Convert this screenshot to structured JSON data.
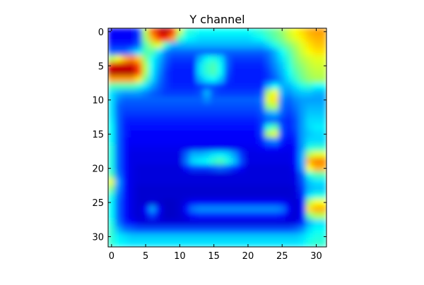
{
  "chart_data": {
    "type": "heatmap",
    "title": "Y channel",
    "xlabel": "",
    "ylabel": "",
    "grid": false,
    "colormap": "jet",
    "interpolation": "smooth",
    "shape": [
      32,
      32
    ],
    "xlim": [
      -0.5,
      31.5
    ],
    "ylim": [
      31.5,
      -0.5
    ],
    "x_ticks": [
      0,
      5,
      10,
      15,
      20,
      25,
      30
    ],
    "x_tick_labels": [
      "0",
      "5",
      "10",
      "15",
      "20",
      "25",
      "30"
    ],
    "y_ticks": [
      0,
      5,
      10,
      15,
      20,
      25,
      30
    ],
    "y_tick_labels": [
      "0",
      "5",
      "10",
      "15",
      "20",
      "25",
      "30"
    ],
    "values_range": [
      0,
      1
    ],
    "values": [
      [
        0.12,
        0.12,
        0.12,
        0.12,
        0.18,
        0.55,
        0.78,
        0.92,
        0.95,
        0.88,
        0.58,
        0.42,
        0.4,
        0.38,
        0.38,
        0.38,
        0.38,
        0.38,
        0.38,
        0.38,
        0.38,
        0.4,
        0.42,
        0.45,
        0.48,
        0.52,
        0.58,
        0.62,
        0.66,
        0.7,
        0.72,
        0.72
      ],
      [
        0.12,
        0.12,
        0.12,
        0.12,
        0.18,
        0.52,
        0.7,
        0.82,
        0.85,
        0.72,
        0.45,
        0.38,
        0.36,
        0.34,
        0.34,
        0.34,
        0.34,
        0.34,
        0.34,
        0.34,
        0.34,
        0.36,
        0.38,
        0.42,
        0.46,
        0.5,
        0.56,
        0.6,
        0.64,
        0.68,
        0.7,
        0.7
      ],
      [
        0.15,
        0.15,
        0.15,
        0.15,
        0.22,
        0.45,
        0.55,
        0.6,
        0.42,
        0.3,
        0.3,
        0.3,
        0.3,
        0.3,
        0.3,
        0.3,
        0.3,
        0.3,
        0.3,
        0.3,
        0.3,
        0.3,
        0.3,
        0.34,
        0.4,
        0.45,
        0.5,
        0.55,
        0.6,
        0.65,
        0.68,
        0.68
      ],
      [
        0.22,
        0.22,
        0.22,
        0.28,
        0.35,
        0.45,
        0.45,
        0.35,
        0.25,
        0.22,
        0.22,
        0.22,
        0.22,
        0.22,
        0.22,
        0.22,
        0.22,
        0.22,
        0.22,
        0.22,
        0.22,
        0.22,
        0.22,
        0.24,
        0.3,
        0.38,
        0.45,
        0.52,
        0.58,
        0.62,
        0.65,
        0.65
      ],
      [
        0.55,
        0.62,
        0.7,
        0.75,
        0.68,
        0.5,
        0.38,
        0.3,
        0.22,
        0.18,
        0.18,
        0.18,
        0.18,
        0.3,
        0.38,
        0.4,
        0.35,
        0.22,
        0.18,
        0.18,
        0.18,
        0.18,
        0.18,
        0.22,
        0.28,
        0.35,
        0.42,
        0.5,
        0.55,
        0.58,
        0.6,
        0.6
      ],
      [
        0.9,
        0.92,
        0.92,
        0.92,
        0.8,
        0.55,
        0.38,
        0.28,
        0.2,
        0.16,
        0.16,
        0.16,
        0.16,
        0.35,
        0.42,
        0.45,
        0.38,
        0.22,
        0.16,
        0.16,
        0.16,
        0.16,
        0.16,
        0.2,
        0.26,
        0.32,
        0.4,
        0.48,
        0.52,
        0.56,
        0.58,
        0.58
      ],
      [
        0.95,
        0.95,
        0.95,
        0.95,
        0.82,
        0.55,
        0.36,
        0.26,
        0.18,
        0.15,
        0.15,
        0.15,
        0.15,
        0.35,
        0.42,
        0.45,
        0.38,
        0.2,
        0.15,
        0.15,
        0.15,
        0.15,
        0.15,
        0.18,
        0.24,
        0.3,
        0.38,
        0.45,
        0.5,
        0.54,
        0.56,
        0.56
      ],
      [
        0.72,
        0.72,
        0.72,
        0.72,
        0.65,
        0.48,
        0.34,
        0.24,
        0.18,
        0.15,
        0.15,
        0.15,
        0.15,
        0.3,
        0.36,
        0.38,
        0.32,
        0.18,
        0.15,
        0.15,
        0.15,
        0.15,
        0.15,
        0.18,
        0.22,
        0.28,
        0.35,
        0.42,
        0.48,
        0.52,
        0.54,
        0.54
      ],
      [
        0.45,
        0.45,
        0.45,
        0.45,
        0.42,
        0.35,
        0.28,
        0.22,
        0.18,
        0.16,
        0.16,
        0.16,
        0.16,
        0.18,
        0.2,
        0.2,
        0.18,
        0.16,
        0.16,
        0.16,
        0.16,
        0.16,
        0.16,
        0.3,
        0.38,
        0.3,
        0.3,
        0.35,
        0.4,
        0.42,
        0.38,
        0.38
      ],
      [
        0.35,
        0.3,
        0.28,
        0.28,
        0.28,
        0.25,
        0.22,
        0.2,
        0.18,
        0.18,
        0.18,
        0.18,
        0.18,
        0.2,
        0.3,
        0.2,
        0.18,
        0.18,
        0.18,
        0.18,
        0.18,
        0.18,
        0.2,
        0.55,
        0.62,
        0.3,
        0.26,
        0.3,
        0.32,
        0.32,
        0.3,
        0.3
      ],
      [
        0.35,
        0.25,
        0.22,
        0.22,
        0.22,
        0.22,
        0.22,
        0.22,
        0.22,
        0.22,
        0.22,
        0.22,
        0.22,
        0.22,
        0.26,
        0.22,
        0.22,
        0.22,
        0.22,
        0.22,
        0.22,
        0.22,
        0.24,
        0.6,
        0.65,
        0.26,
        0.22,
        0.26,
        0.28,
        0.28,
        0.28,
        0.28
      ],
      [
        0.35,
        0.22,
        0.2,
        0.2,
        0.2,
        0.2,
        0.2,
        0.2,
        0.2,
        0.2,
        0.2,
        0.2,
        0.2,
        0.2,
        0.2,
        0.2,
        0.2,
        0.2,
        0.2,
        0.2,
        0.2,
        0.2,
        0.22,
        0.52,
        0.55,
        0.24,
        0.2,
        0.24,
        0.28,
        0.3,
        0.3,
        0.3
      ],
      [
        0.35,
        0.22,
        0.18,
        0.18,
        0.18,
        0.18,
        0.18,
        0.18,
        0.18,
        0.18,
        0.18,
        0.18,
        0.18,
        0.18,
        0.18,
        0.18,
        0.18,
        0.18,
        0.18,
        0.18,
        0.18,
        0.18,
        0.2,
        0.28,
        0.3,
        0.22,
        0.18,
        0.22,
        0.28,
        0.32,
        0.32,
        0.32
      ],
      [
        0.36,
        0.22,
        0.16,
        0.15,
        0.15,
        0.15,
        0.15,
        0.15,
        0.15,
        0.15,
        0.15,
        0.15,
        0.15,
        0.15,
        0.15,
        0.15,
        0.15,
        0.15,
        0.15,
        0.15,
        0.15,
        0.15,
        0.18,
        0.22,
        0.22,
        0.18,
        0.16,
        0.2,
        0.28,
        0.34,
        0.34,
        0.34
      ],
      [
        0.38,
        0.22,
        0.15,
        0.14,
        0.14,
        0.14,
        0.14,
        0.14,
        0.14,
        0.14,
        0.14,
        0.14,
        0.14,
        0.14,
        0.14,
        0.14,
        0.14,
        0.14,
        0.14,
        0.14,
        0.14,
        0.14,
        0.18,
        0.4,
        0.45,
        0.2,
        0.15,
        0.2,
        0.28,
        0.34,
        0.36,
        0.36
      ],
      [
        0.38,
        0.22,
        0.15,
        0.12,
        0.12,
        0.12,
        0.12,
        0.12,
        0.12,
        0.12,
        0.12,
        0.12,
        0.12,
        0.12,
        0.12,
        0.12,
        0.12,
        0.12,
        0.12,
        0.12,
        0.12,
        0.12,
        0.18,
        0.55,
        0.6,
        0.2,
        0.14,
        0.18,
        0.28,
        0.32,
        0.34,
        0.34
      ],
      [
        0.38,
        0.22,
        0.14,
        0.12,
        0.12,
        0.12,
        0.12,
        0.12,
        0.12,
        0.12,
        0.12,
        0.12,
        0.12,
        0.12,
        0.12,
        0.12,
        0.12,
        0.12,
        0.12,
        0.12,
        0.12,
        0.12,
        0.15,
        0.24,
        0.26,
        0.16,
        0.12,
        0.16,
        0.28,
        0.34,
        0.34,
        0.34
      ],
      [
        0.4,
        0.22,
        0.14,
        0.11,
        0.11,
        0.11,
        0.11,
        0.11,
        0.11,
        0.11,
        0.11,
        0.11,
        0.11,
        0.11,
        0.11,
        0.11,
        0.11,
        0.11,
        0.11,
        0.11,
        0.11,
        0.11,
        0.12,
        0.14,
        0.14,
        0.12,
        0.11,
        0.14,
        0.28,
        0.4,
        0.42,
        0.42
      ],
      [
        0.4,
        0.22,
        0.14,
        0.1,
        0.1,
        0.1,
        0.1,
        0.1,
        0.1,
        0.1,
        0.1,
        0.22,
        0.3,
        0.3,
        0.32,
        0.35,
        0.36,
        0.34,
        0.28,
        0.18,
        0.1,
        0.1,
        0.1,
        0.1,
        0.1,
        0.1,
        0.1,
        0.14,
        0.3,
        0.55,
        0.6,
        0.6
      ],
      [
        0.4,
        0.22,
        0.14,
        0.1,
        0.1,
        0.1,
        0.1,
        0.1,
        0.1,
        0.1,
        0.1,
        0.24,
        0.34,
        0.36,
        0.38,
        0.42,
        0.45,
        0.4,
        0.32,
        0.2,
        0.1,
        0.1,
        0.1,
        0.1,
        0.1,
        0.1,
        0.1,
        0.14,
        0.3,
        0.7,
        0.75,
        0.75
      ],
      [
        0.4,
        0.22,
        0.14,
        0.1,
        0.09,
        0.09,
        0.09,
        0.09,
        0.09,
        0.09,
        0.09,
        0.14,
        0.18,
        0.18,
        0.18,
        0.2,
        0.22,
        0.2,
        0.16,
        0.12,
        0.09,
        0.09,
        0.09,
        0.09,
        0.09,
        0.09,
        0.09,
        0.12,
        0.28,
        0.62,
        0.7,
        0.7
      ],
      [
        0.45,
        0.24,
        0.14,
        0.1,
        0.09,
        0.09,
        0.09,
        0.09,
        0.09,
        0.09,
        0.09,
        0.09,
        0.09,
        0.09,
        0.09,
        0.09,
        0.09,
        0.09,
        0.09,
        0.09,
        0.09,
        0.09,
        0.09,
        0.09,
        0.09,
        0.09,
        0.09,
        0.1,
        0.22,
        0.4,
        0.45,
        0.45
      ],
      [
        0.6,
        0.28,
        0.14,
        0.1,
        0.09,
        0.09,
        0.09,
        0.09,
        0.09,
        0.09,
        0.09,
        0.09,
        0.09,
        0.09,
        0.09,
        0.09,
        0.09,
        0.09,
        0.09,
        0.09,
        0.09,
        0.09,
        0.09,
        0.09,
        0.09,
        0.09,
        0.09,
        0.1,
        0.2,
        0.32,
        0.35,
        0.35
      ],
      [
        0.5,
        0.26,
        0.14,
        0.1,
        0.08,
        0.08,
        0.08,
        0.08,
        0.08,
        0.08,
        0.08,
        0.08,
        0.08,
        0.08,
        0.08,
        0.08,
        0.08,
        0.08,
        0.08,
        0.08,
        0.08,
        0.08,
        0.08,
        0.08,
        0.08,
        0.08,
        0.08,
        0.09,
        0.18,
        0.3,
        0.32,
        0.32
      ],
      [
        0.4,
        0.24,
        0.14,
        0.1,
        0.08,
        0.08,
        0.08,
        0.08,
        0.08,
        0.08,
        0.08,
        0.08,
        0.08,
        0.08,
        0.08,
        0.08,
        0.08,
        0.08,
        0.08,
        0.08,
        0.08,
        0.08,
        0.08,
        0.08,
        0.08,
        0.08,
        0.08,
        0.09,
        0.16,
        0.35,
        0.4,
        0.4
      ],
      [
        0.38,
        0.22,
        0.14,
        0.1,
        0.08,
        0.08,
        0.09,
        0.08,
        0.07,
        0.07,
        0.08,
        0.1,
        0.12,
        0.12,
        0.12,
        0.12,
        0.12,
        0.12,
        0.12,
        0.12,
        0.12,
        0.12,
        0.12,
        0.12,
        0.12,
        0.12,
        0.1,
        0.08,
        0.14,
        0.55,
        0.62,
        0.62
      ],
      [
        0.38,
        0.22,
        0.14,
        0.1,
        0.08,
        0.12,
        0.28,
        0.12,
        0.07,
        0.07,
        0.08,
        0.14,
        0.24,
        0.26,
        0.26,
        0.26,
        0.26,
        0.26,
        0.26,
        0.26,
        0.26,
        0.26,
        0.26,
        0.26,
        0.26,
        0.24,
        0.12,
        0.08,
        0.14,
        0.65,
        0.7,
        0.7
      ],
      [
        0.38,
        0.22,
        0.14,
        0.1,
        0.08,
        0.1,
        0.18,
        0.1,
        0.07,
        0.07,
        0.08,
        0.1,
        0.14,
        0.15,
        0.15,
        0.15,
        0.15,
        0.15,
        0.15,
        0.15,
        0.15,
        0.15,
        0.15,
        0.15,
        0.15,
        0.14,
        0.1,
        0.08,
        0.14,
        0.48,
        0.55,
        0.55
      ],
      [
        0.4,
        0.24,
        0.16,
        0.12,
        0.1,
        0.09,
        0.09,
        0.09,
        0.09,
        0.09,
        0.09,
        0.09,
        0.09,
        0.09,
        0.09,
        0.09,
        0.09,
        0.09,
        0.09,
        0.09,
        0.09,
        0.09,
        0.09,
        0.09,
        0.09,
        0.09,
        0.09,
        0.1,
        0.16,
        0.3,
        0.35,
        0.35
      ],
      [
        0.42,
        0.3,
        0.24,
        0.22,
        0.2,
        0.2,
        0.2,
        0.2,
        0.2,
        0.2,
        0.2,
        0.2,
        0.2,
        0.2,
        0.2,
        0.2,
        0.2,
        0.2,
        0.2,
        0.2,
        0.2,
        0.2,
        0.2,
        0.2,
        0.2,
        0.2,
        0.2,
        0.22,
        0.26,
        0.34,
        0.38,
        0.38
      ],
      [
        0.42,
        0.36,
        0.34,
        0.32,
        0.32,
        0.32,
        0.32,
        0.32,
        0.32,
        0.32,
        0.32,
        0.32,
        0.32,
        0.32,
        0.32,
        0.32,
        0.32,
        0.32,
        0.32,
        0.32,
        0.32,
        0.32,
        0.32,
        0.32,
        0.32,
        0.32,
        0.32,
        0.32,
        0.34,
        0.38,
        0.4,
        0.4
      ],
      [
        0.42,
        0.38,
        0.36,
        0.35,
        0.35,
        0.35,
        0.35,
        0.35,
        0.35,
        0.35,
        0.35,
        0.35,
        0.35,
        0.35,
        0.35,
        0.35,
        0.35,
        0.35,
        0.35,
        0.35,
        0.35,
        0.35,
        0.35,
        0.35,
        0.35,
        0.35,
        0.35,
        0.35,
        0.36,
        0.4,
        0.42,
        0.42
      ]
    ]
  }
}
